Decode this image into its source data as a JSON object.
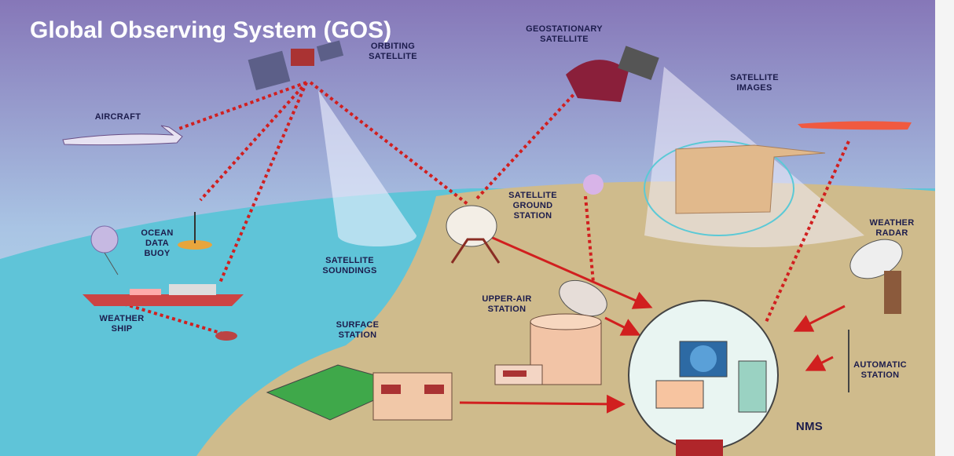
{
  "title": "Global Observing System (GOS)",
  "labels": [
    {
      "lines": [
        "AIRCRAFT"
      ]
    },
    {
      "lines": [
        "ORBITING",
        "SATELLITE"
      ]
    },
    {
      "lines": [
        "GEOSTATIONARY",
        "SATELLITE"
      ]
    },
    {
      "lines": [
        "SATELLITE",
        "IMAGES"
      ]
    },
    {
      "lines": [
        "OCEAN",
        "DATA",
        "BUOY"
      ]
    },
    {
      "lines": [
        "SATELLITE",
        "SOUNDINGS"
      ]
    },
    {
      "lines": [
        "SATELLITE",
        "GROUND",
        "STATION"
      ]
    },
    {
      "lines": [
        "WEATHER",
        "RADAR"
      ]
    },
    {
      "lines": [
        "WEATHER",
        "SHIP"
      ]
    },
    {
      "lines": [
        "UPPER-AIR",
        "STATION"
      ]
    },
    {
      "lines": [
        "SURFACE",
        "STATION"
      ]
    },
    {
      "lines": [
        "AUTOMATIC",
        "STATION"
      ]
    },
    {
      "lines": [
        "NMS"
      ]
    }
  ]
}
